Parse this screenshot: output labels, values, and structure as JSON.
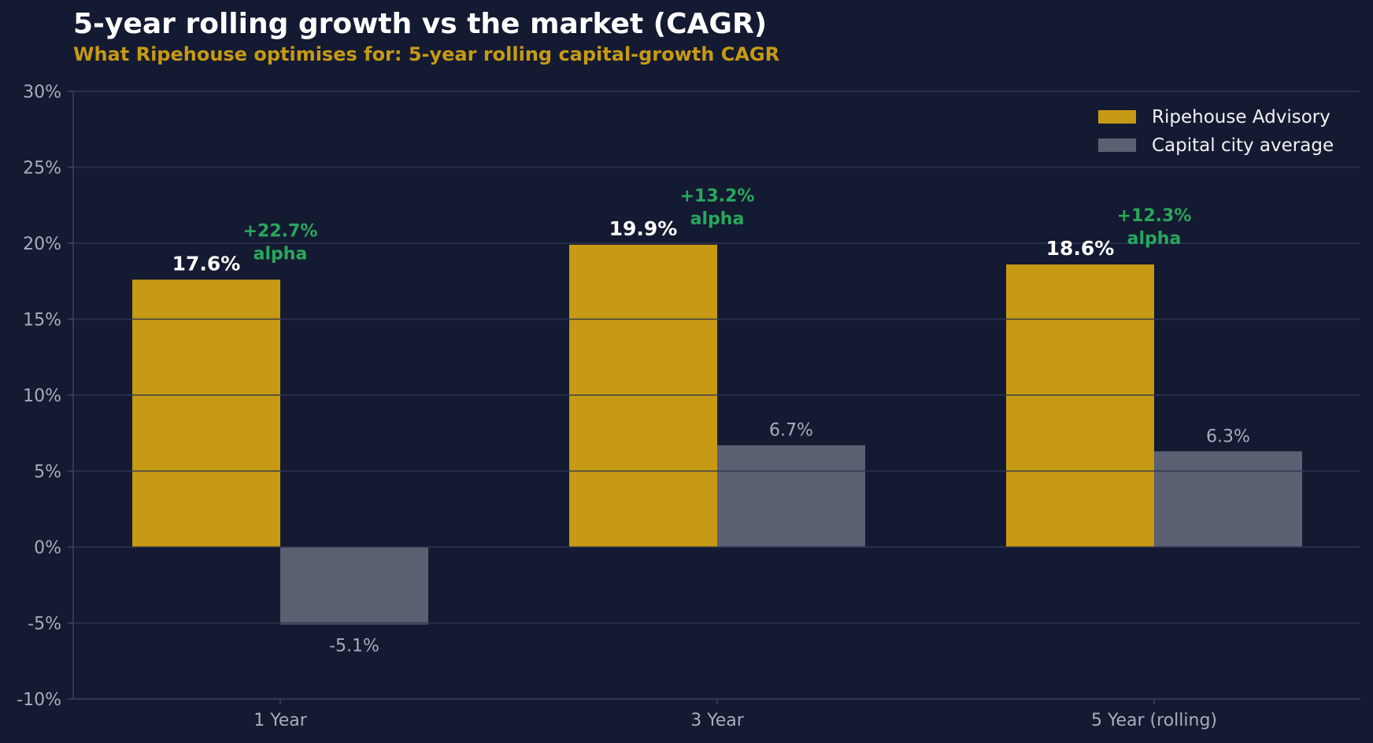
{
  "chart_data": {
    "type": "bar",
    "title": "5-year rolling growth vs the market (CAGR)",
    "subtitle": "What Ripehouse optimises for: 5-year rolling capital-growth CAGR",
    "categories": [
      "1 Year",
      "3 Year",
      "5 Year (rolling)"
    ],
    "series": [
      {
        "name": "Ripehouse Advisory",
        "values": [
          17.6,
          19.9,
          18.6
        ],
        "labels": [
          "17.6%",
          "19.9%",
          "18.6%"
        ],
        "color": "#c69a14"
      },
      {
        "name": "Capital city average",
        "values": [
          -5.1,
          6.7,
          6.3
        ],
        "labels": [
          "-5.1%",
          "6.7%",
          "6.3%"
        ],
        "color": "#5b6072"
      }
    ],
    "annotations": [
      {
        "category": "1 Year",
        "line1": "+22.7%",
        "line2": "alpha"
      },
      {
        "category": "3 Year",
        "line1": "+13.2%",
        "line2": "alpha"
      },
      {
        "category": "5 Year (rolling)",
        "line1": "+12.3%",
        "line2": "alpha"
      }
    ],
    "ylim": [
      -10,
      30
    ],
    "yticks": [
      -10,
      -5,
      0,
      5,
      10,
      15,
      20,
      25,
      30
    ],
    "ytick_labels": [
      "-10%",
      "-5%",
      "0%",
      "5%",
      "10%",
      "15%",
      "20%",
      "25%",
      "30%"
    ],
    "xlabel": "",
    "ylabel": "",
    "grid": true,
    "legend": "top-right",
    "colors": {
      "background": "#141a31",
      "grid": "#2b3250",
      "axis": "#3b4262",
      "title": "#ffffff",
      "subtitle": "#c69a14",
      "tick_text": "#a9adbc",
      "primary_label": "#ffffff",
      "secondary_label": "#a9adbc",
      "alpha": "#27a85c"
    }
  }
}
